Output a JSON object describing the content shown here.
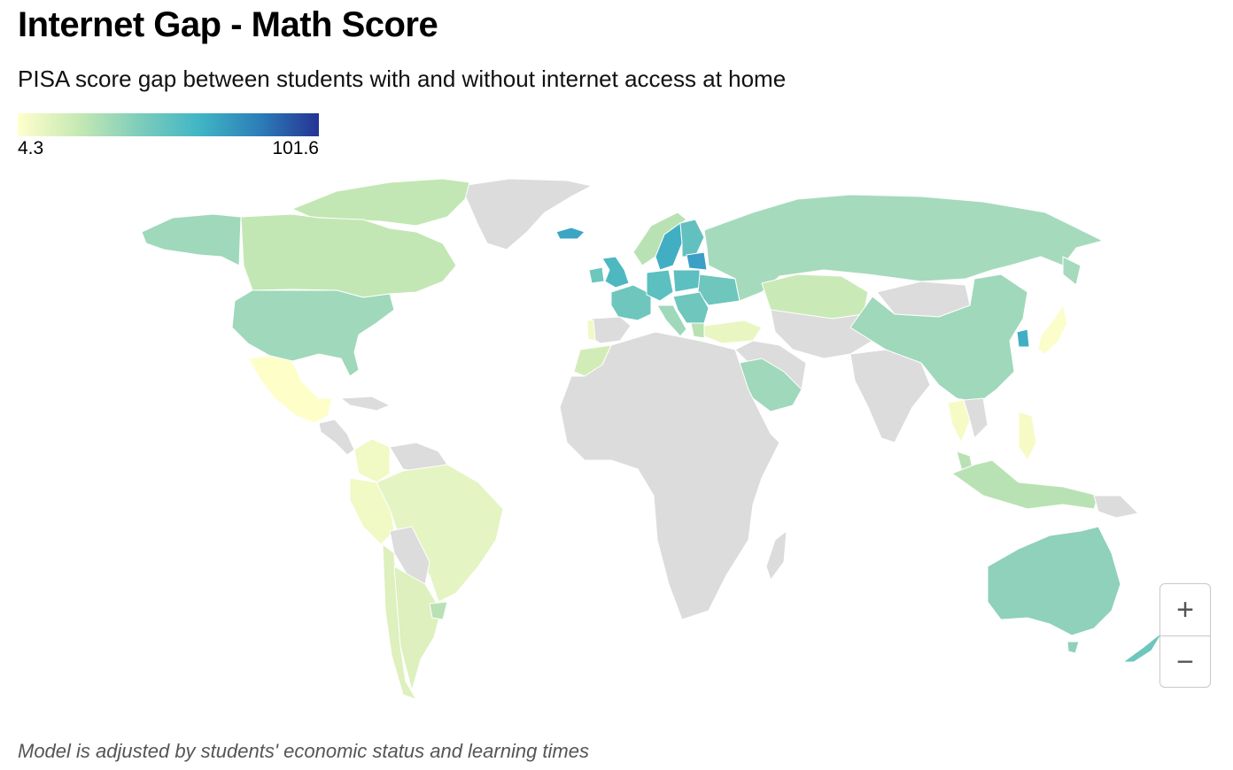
{
  "header": {
    "title": "Internet Gap - Math Score",
    "subtitle": "PISA score gap between students with and without internet access at home"
  },
  "legend": {
    "min_label": "4.3",
    "max_label": "101.6",
    "min": 4.3,
    "max": 101.6,
    "colors": [
      "#ffffcc",
      "#c7e9b4",
      "#7fcdbb",
      "#41b6c4",
      "#2c7fb8",
      "#253494"
    ]
  },
  "map": {
    "no_data_color": "#dcdcdc",
    "border_color": "#ffffff"
  },
  "controls": {
    "zoom_in_label": "+",
    "zoom_out_label": "−"
  },
  "footnote": "Model is adjusted by students' economic status and learning times"
}
